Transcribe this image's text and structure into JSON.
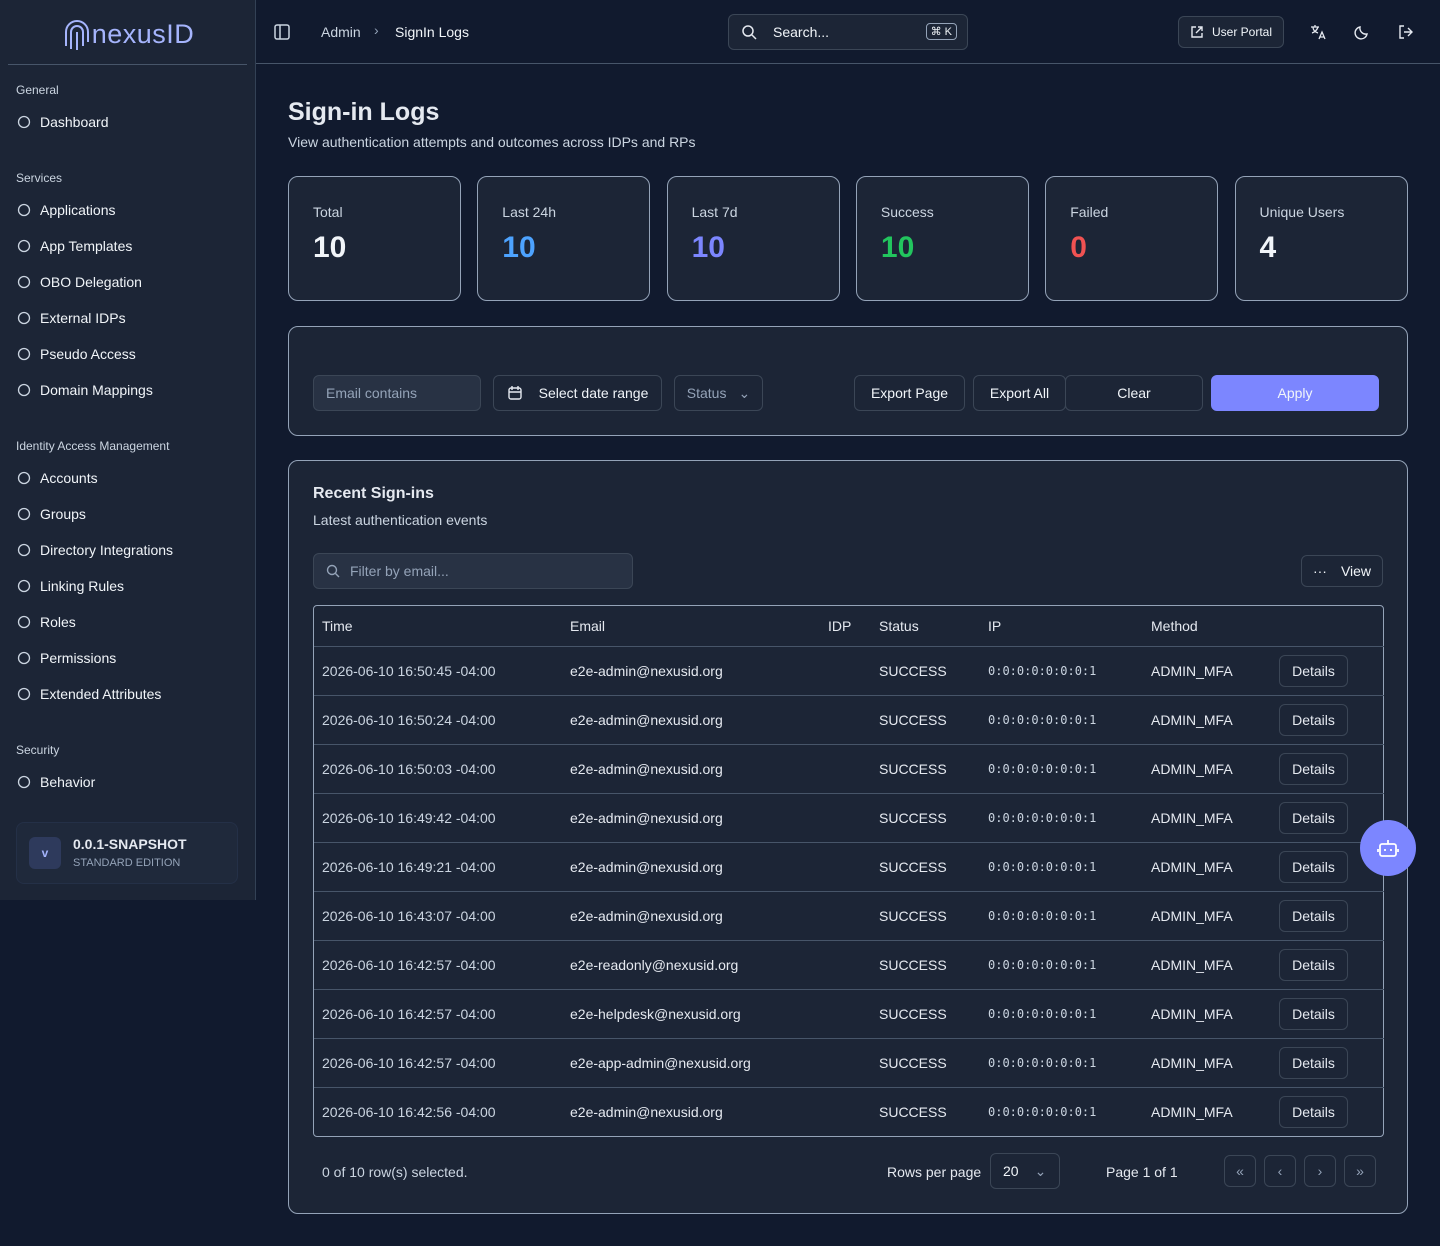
{
  "sidebar": {
    "brand": "nexusID",
    "sections": [
      {
        "title": "General",
        "items": [
          "Dashboard"
        ]
      },
      {
        "title": "Services",
        "items": [
          "Applications",
          "App Templates",
          "OBO Delegation",
          "External IDPs",
          "Pseudo Access",
          "Domain Mappings"
        ]
      },
      {
        "title": "Identity Access Management",
        "items": [
          "Accounts",
          "Groups",
          "Directory Integrations",
          "Linking Rules",
          "Roles",
          "Permissions",
          "Extended Attributes"
        ]
      },
      {
        "title": "Security",
        "items": [
          "Behavior"
        ]
      }
    ],
    "version": {
      "badge": "v",
      "name": "0.0.1-SNAPSHOT",
      "edition": "STANDARD EDITION"
    }
  },
  "header": {
    "breadcrumb": [
      "Admin",
      "SignIn Logs"
    ],
    "search": "Search...",
    "shortcut": "⌘ K",
    "user_portal": "User Portal"
  },
  "page": {
    "title": "Sign-in Logs",
    "subtitle": "View authentication attempts and outcomes across IDPs and RPs"
  },
  "stats": [
    {
      "label": "Total",
      "value": 10,
      "color": "#f1f5f9"
    },
    {
      "label": "Last 24h",
      "value": 10,
      "color": "#4da3ff"
    },
    {
      "label": "Last 7d",
      "value": 10,
      "color": "#7c86ff"
    },
    {
      "label": "Success",
      "value": 10,
      "color": "#22c55e"
    },
    {
      "label": "Failed",
      "value": 0,
      "color": "#f05252"
    },
    {
      "label": "Unique Users",
      "value": 4,
      "color": "#f1f5f9"
    }
  ],
  "filters": {
    "email": "Email contains",
    "date": "Select date range",
    "status": "Status",
    "export_page": "Export Page",
    "export_all": "Export All",
    "clear": "Clear",
    "apply": "Apply"
  },
  "table": {
    "title": "Recent Sign-ins",
    "subtitle": "Latest authentication events",
    "filter": "Filter by email...",
    "view": "View",
    "columns": [
      "Time",
      "Email",
      "IDP",
      "Status",
      "IP",
      "Method"
    ],
    "rows": [
      {
        "time": "2026-06-10 16:50:45 -04:00",
        "email": "e2e-admin@nexusid.org",
        "status": "SUCCESS",
        "ip": "0:0:0:0:0:0:0:1",
        "method": "ADMIN_MFA"
      },
      {
        "time": "2026-06-10 16:50:24 -04:00",
        "email": "e2e-admin@nexusid.org",
        "status": "SUCCESS",
        "ip": "0:0:0:0:0:0:0:1",
        "method": "ADMIN_MFA"
      },
      {
        "time": "2026-06-10 16:50:03 -04:00",
        "email": "e2e-admin@nexusid.org",
        "status": "SUCCESS",
        "ip": "0:0:0:0:0:0:0:1",
        "method": "ADMIN_MFA"
      },
      {
        "time": "2026-06-10 16:49:42 -04:00",
        "email": "e2e-admin@nexusid.org",
        "status": "SUCCESS",
        "ip": "0:0:0:0:0:0:0:1",
        "method": "ADMIN_MFA"
      },
      {
        "time": "2026-06-10 16:49:21 -04:00",
        "email": "e2e-admin@nexusid.org",
        "status": "SUCCESS",
        "ip": "0:0:0:0:0:0:0:1",
        "method": "ADMIN_MFA"
      },
      {
        "time": "2026-06-10 16:43:07 -04:00",
        "email": "e2e-admin@nexusid.org",
        "status": "SUCCESS",
        "ip": "0:0:0:0:0:0:0:1",
        "method": "ADMIN_MFA"
      },
      {
        "time": "2026-06-10 16:42:57 -04:00",
        "email": "e2e-readonly@nexusid.org",
        "status": "SUCCESS",
        "ip": "0:0:0:0:0:0:0:1",
        "method": "ADMIN_MFA"
      },
      {
        "time": "2026-06-10 16:42:57 -04:00",
        "email": "e2e-helpdesk@nexusid.org",
        "status": "SUCCESS",
        "ip": "0:0:0:0:0:0:0:1",
        "method": "ADMIN_MFA"
      },
      {
        "time": "2026-06-10 16:42:57 -04:00",
        "email": "e2e-app-admin@nexusid.org",
        "status": "SUCCESS",
        "ip": "0:0:0:0:0:0:0:1",
        "method": "ADMIN_MFA"
      },
      {
        "time": "2026-06-10 16:42:56 -04:00",
        "email": "e2e-admin@nexusid.org",
        "status": "SUCCESS",
        "ip": "0:0:0:0:0:0:0:1",
        "method": "ADMIN_MFA"
      }
    ],
    "action": "Details",
    "selection": "0 of 10 row(s) selected.",
    "rows_per_page_label": "Rows per page",
    "rows_per_page": 20,
    "page_info": "Page 1 of 1"
  }
}
